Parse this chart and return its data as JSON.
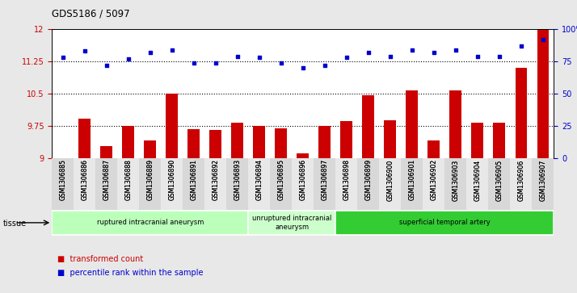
{
  "title": "GDS5186 / 5097",
  "samples": [
    "GSM1306885",
    "GSM1306886",
    "GSM1306887",
    "GSM1306888",
    "GSM1306889",
    "GSM1306890",
    "GSM1306891",
    "GSM1306892",
    "GSM1306893",
    "GSM1306894",
    "GSM1306895",
    "GSM1306896",
    "GSM1306897",
    "GSM1306898",
    "GSM1306899",
    "GSM1306900",
    "GSM1306901",
    "GSM1306902",
    "GSM1306903",
    "GSM1306904",
    "GSM1306905",
    "GSM1306906",
    "GSM1306907"
  ],
  "bar_values": [
    9.0,
    9.92,
    9.28,
    9.75,
    9.42,
    10.5,
    9.67,
    9.65,
    9.82,
    9.75,
    9.7,
    9.12,
    9.75,
    9.86,
    10.47,
    9.88,
    10.57,
    9.42,
    10.57,
    9.82,
    9.82,
    11.1,
    12.0
  ],
  "percentile_values": [
    78,
    83,
    72,
    77,
    82,
    84,
    74,
    74,
    79,
    78,
    74,
    70,
    72,
    78,
    82,
    79,
    84,
    82,
    84,
    79,
    79,
    87,
    92
  ],
  "bar_color": "#cc0000",
  "dot_color": "#0000cc",
  "ylim_left": [
    9,
    12
  ],
  "ylim_right": [
    0,
    100
  ],
  "yticks_left": [
    9,
    9.75,
    10.5,
    11.25,
    12
  ],
  "ytick_labels_left": [
    "9",
    "9.75",
    "10.5",
    "11.25",
    "12"
  ],
  "yticks_right": [
    0,
    25,
    50,
    75,
    100
  ],
  "ytick_labels_right": [
    "0",
    "25",
    "50",
    "75",
    "100%"
  ],
  "hlines": [
    9.75,
    10.5,
    11.25
  ],
  "groups": [
    {
      "label": "ruptured intracranial aneurysm",
      "start": 0,
      "end": 8,
      "color": "#bbffbb"
    },
    {
      "label": "unruptured intracranial\naneurysm",
      "start": 9,
      "end": 12,
      "color": "#ccffcc"
    },
    {
      "label": "superficial temporal artery",
      "start": 13,
      "end": 22,
      "color": "#33cc33"
    }
  ],
  "tissue_label": "tissue",
  "legend_bar_label": "transformed count",
  "legend_dot_label": "percentile rank within the sample",
  "fig_bg_color": "#e8e8e8",
  "plot_bg_color": "#ffffff"
}
